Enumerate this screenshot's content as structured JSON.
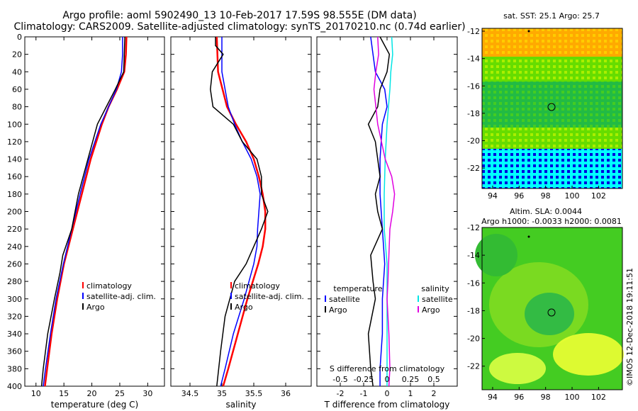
{
  "header": {
    "line1": "Argo profile: aoml 5902490_13 10-Feb-2017 17.59S 98.555E (DM data)",
    "line2": "Climatology: CARS2009. Satellite-adjusted climatology: synTS_20170210.nc (0.74d earlier)"
  },
  "colors": {
    "climatology": "#ff0000",
    "satellite": "#0000ff",
    "argo": "#000000",
    "sat_salinity": "#00e5e5",
    "argo_salinity": "#e000e0"
  },
  "chart_data": [
    {
      "type": "line",
      "name": "temperature",
      "xlabel": "temperature (deg C)",
      "xlim": [
        8,
        33
      ],
      "ylim": [
        0,
        400
      ],
      "xticks": [
        10,
        15,
        20,
        25,
        30
      ],
      "yticks": [
        0,
        20,
        40,
        60,
        80,
        100,
        120,
        140,
        160,
        180,
        200,
        220,
        240,
        260,
        280,
        300,
        320,
        340,
        360,
        380,
        400
      ],
      "legend": [
        "climatology",
        "satellite-adj. clim.",
        "Argo"
      ],
      "series": [
        {
          "name": "climatology",
          "depth": [
            0,
            20,
            40,
            60,
            80,
            100,
            140,
            180,
            220,
            260,
            300,
            340,
            380,
            400
          ],
          "values": [
            26.2,
            26.1,
            25.8,
            24.5,
            23.0,
            21.8,
            19.8,
            18.2,
            16.6,
            15.0,
            13.8,
            12.8,
            12.0,
            11.6
          ]
        },
        {
          "name": "satellite-adj. clim.",
          "depth": [
            0,
            20,
            40,
            60,
            80,
            100,
            140,
            180,
            220,
            260,
            300,
            340,
            380,
            400
          ],
          "values": [
            25.5,
            25.5,
            25.3,
            24.4,
            23.0,
            21.6,
            19.5,
            17.9,
            16.4,
            14.9,
            13.6,
            12.6,
            11.7,
            11.3
          ]
        },
        {
          "name": "Argo",
          "depth": [
            0,
            20,
            40,
            60,
            80,
            100,
            140,
            180,
            220,
            250,
            270,
            300,
            340,
            380,
            400
          ],
          "values": [
            25.9,
            25.8,
            25.7,
            24.2,
            22.6,
            21.0,
            19.3,
            17.6,
            16.4,
            14.8,
            14.3,
            13.3,
            12.1,
            11.3,
            11.0
          ]
        }
      ]
    },
    {
      "type": "line",
      "name": "salinity",
      "xlabel": "salinity",
      "xlim": [
        34.2,
        36.4
      ],
      "ylim": [
        0,
        400
      ],
      "xticks": [
        34.5,
        35,
        35.5,
        36
      ],
      "legend": [
        "climatology",
        "satellite-adj. clim.",
        "Argo"
      ],
      "series": [
        {
          "name": "climatology",
          "depth": [
            0,
            40,
            80,
            100,
            120,
            140,
            160,
            180,
            200,
            220,
            240,
            260,
            300,
            340,
            380,
            400
          ],
          "values": [
            34.92,
            34.94,
            35.08,
            35.22,
            35.38,
            35.5,
            35.58,
            35.64,
            35.68,
            35.68,
            35.64,
            35.57,
            35.4,
            35.25,
            35.1,
            35.02
          ]
        },
        {
          "name": "satellite-adj. clim.",
          "depth": [
            0,
            40,
            80,
            100,
            120,
            140,
            160,
            180,
            200,
            220,
            240,
            260,
            300,
            340,
            380,
            400
          ],
          "values": [
            35.0,
            35.0,
            35.1,
            35.2,
            35.32,
            35.46,
            35.55,
            35.6,
            35.58,
            35.56,
            35.55,
            35.5,
            35.35,
            35.18,
            35.05,
            34.98
          ]
        },
        {
          "name": "Argo",
          "depth": [
            0,
            10,
            20,
            40,
            60,
            80,
            100,
            120,
            140,
            160,
            180,
            200,
            220,
            240,
            260,
            280,
            320,
            360,
            380,
            400
          ],
          "values": [
            34.9,
            34.9,
            35.02,
            34.85,
            34.82,
            34.86,
            35.18,
            35.32,
            35.55,
            35.62,
            35.62,
            35.72,
            35.62,
            35.5,
            35.38,
            35.2,
            35.05,
            34.98,
            34.95,
            34.92
          ]
        }
      ]
    },
    {
      "type": "line",
      "name": "difference",
      "xlabel": "T difference from climatology",
      "xlim": [
        -3,
        3
      ],
      "ylim": [
        0,
        400
      ],
      "xticks": [
        -2,
        -1,
        0,
        1,
        2
      ],
      "top_axis_label": "S difference from climatology",
      "top_ticks": [
        "-0.5",
        "-0.25",
        "0",
        "0.25",
        "0.5"
      ],
      "legend_left_title": "temperature",
      "legend_right_title": "salinity",
      "legend_left": [
        "satellite",
        "Argo"
      ],
      "legend_right": [
        "satellite",
        "Argo"
      ],
      "series": [
        {
          "name": "T satellite",
          "depth": [
            0,
            20,
            40,
            60,
            80,
            100,
            140,
            180,
            220,
            260,
            300,
            340,
            380,
            400
          ],
          "values": [
            -0.7,
            -0.6,
            -0.5,
            -0.1,
            0.0,
            -0.2,
            -0.3,
            -0.3,
            -0.2,
            -0.1,
            -0.2,
            -0.2,
            -0.3,
            -0.3
          ]
        },
        {
          "name": "T Argo",
          "depth": [
            0,
            20,
            40,
            60,
            80,
            100,
            120,
            140,
            160,
            180,
            200,
            220,
            250,
            280,
            300,
            340,
            380,
            400
          ],
          "values": [
            -0.3,
            0.1,
            0.0,
            -0.3,
            -0.4,
            -0.8,
            -0.5,
            -0.4,
            -0.3,
            -0.5,
            -0.4,
            -0.2,
            -0.7,
            -0.6,
            -0.5,
            -0.8,
            -0.7,
            -0.6
          ]
        },
        {
          "name": "S satellite",
          "depth": [
            0,
            20,
            40,
            60,
            100,
            140,
            180,
            220,
            260,
            300,
            340,
            380,
            400
          ],
          "values": [
            0.05,
            0.06,
            0.04,
            0.03,
            0.0,
            -0.02,
            -0.03,
            -0.03,
            0.0,
            0.0,
            0.0,
            0.0,
            0.0
          ]
        },
        {
          "name": "S Argo",
          "depth": [
            0,
            20,
            40,
            60,
            80,
            100,
            120,
            140,
            160,
            180,
            200,
            220,
            250,
            280,
            300,
            340,
            380,
            400
          ],
          "values": [
            -0.1,
            -0.09,
            -0.12,
            -0.14,
            -0.12,
            -0.1,
            -0.06,
            -0.02,
            0.05,
            0.08,
            0.06,
            0.03,
            0.02,
            0.01,
            0.0,
            0.02,
            0.03,
            0.02
          ]
        }
      ]
    }
  ],
  "maps": {
    "sst": {
      "title": "sat. SST: 25.1 Argo: 25.7",
      "xticks": [
        "94",
        "96",
        "98",
        "100",
        "102"
      ],
      "yticks": [
        "-12",
        "-14",
        "-16",
        "-18",
        "-20",
        "-22"
      ]
    },
    "sla": {
      "title1": "Altim. SLA: 0.0044",
      "title2": "Argo h1000: -0.0033 h2000: 0.0081",
      "xticks": [
        "94",
        "96",
        "98",
        "100",
        "102"
      ],
      "yticks": [
        "-12",
        "-14",
        "-16",
        "-18",
        "-20",
        "-22"
      ]
    }
  },
  "footer_stamp": "©IMOS 12-Dec-2018 19:11:51"
}
